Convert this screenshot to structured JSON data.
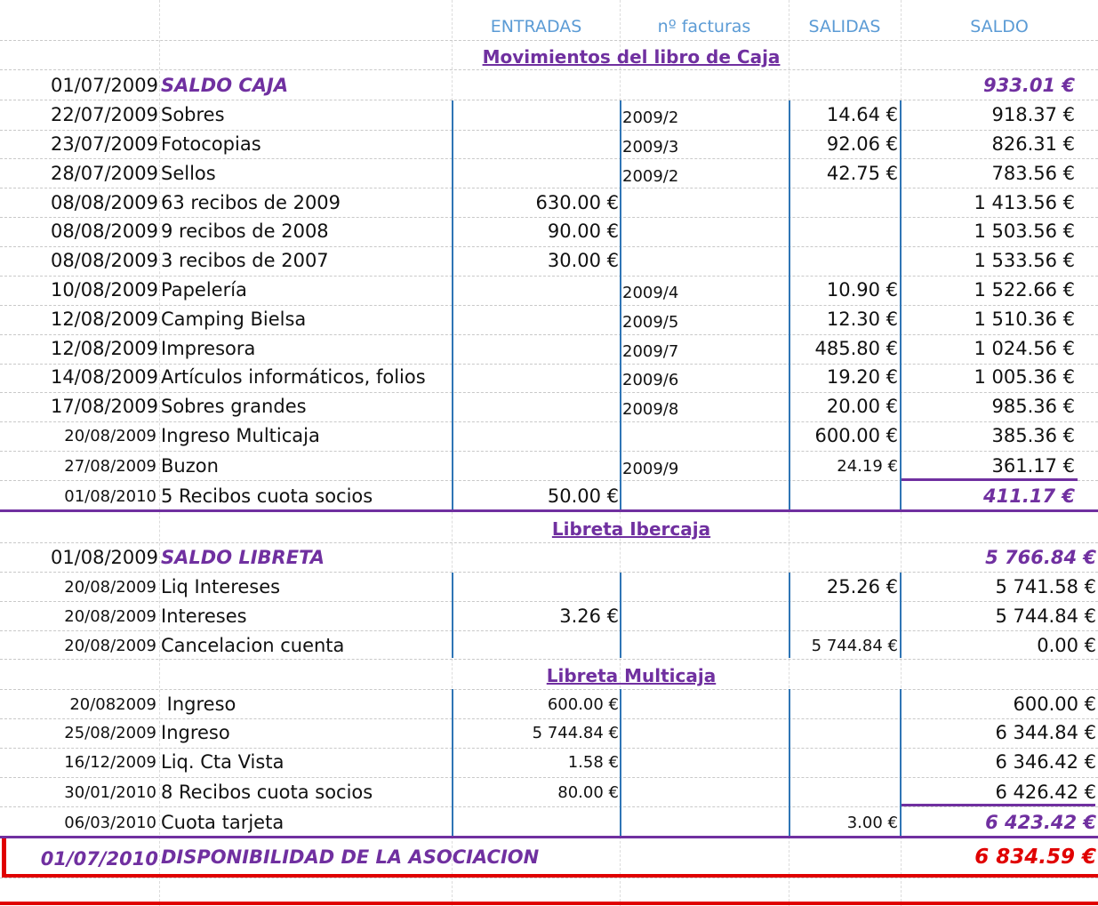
{
  "headers": {
    "entradas": "ENTRADAS",
    "facturas": "nº facturas",
    "salidas": "SALIDAS",
    "saldo": "SALDO"
  },
  "caja": {
    "title": "Movimientos del libro de Caja",
    "opening": {
      "date": "01/07/2009",
      "label": "SALDO CAJA",
      "saldo": "933.01 €"
    },
    "rows": [
      {
        "date": "22/07/2009",
        "desc": "Sobres",
        "entradas": "",
        "factura": "2009/2",
        "salidas": "14.64 €",
        "saldo": "918.37 €"
      },
      {
        "date": "23/07/2009",
        "desc": "Fotocopias",
        "entradas": "",
        "factura": "2009/3",
        "salidas": "92.06 €",
        "saldo": "826.31 €"
      },
      {
        "date": "28/07/2009",
        "desc": "Sellos",
        "entradas": "",
        "factura": "2009/2",
        "salidas": "42.75 €",
        "saldo": "783.56 €"
      },
      {
        "date": "08/08/2009",
        "desc": "63 recibos de 2009",
        "entradas": "630.00 €",
        "factura": "",
        "salidas": "",
        "saldo": "1 413.56 €"
      },
      {
        "date": "08/08/2009",
        "desc": "9 recibos de 2008",
        "entradas": "90.00 €",
        "factura": "",
        "salidas": "",
        "saldo": "1 503.56 €"
      },
      {
        "date": "08/08/2009",
        "desc": "3 recibos de 2007",
        "entradas": "30.00 €",
        "factura": "",
        "salidas": "",
        "saldo": "1 533.56 €"
      },
      {
        "date": "10/08/2009",
        "desc": "Papelería",
        "entradas": "",
        "factura": "2009/4",
        "salidas": "10.90 €",
        "saldo": "1 522.66 €"
      },
      {
        "date": "12/08/2009",
        "desc": "Camping Bielsa",
        "entradas": "",
        "factura": "2009/5",
        "salidas": "12.30 €",
        "saldo": "1 510.36 €"
      },
      {
        "date": "12/08/2009",
        "desc": "Impresora",
        "entradas": "",
        "factura": "2009/7",
        "salidas": "485.80 €",
        "saldo": "1 024.56 €"
      },
      {
        "date": "14/08/2009",
        "desc": "Artículos informáticos, folios",
        "entradas": "",
        "factura": "2009/6",
        "salidas": "19.20 €",
        "saldo": "1 005.36 €"
      },
      {
        "date": "17/08/2009",
        "desc": "Sobres grandes",
        "entradas": "",
        "factura": "2009/8",
        "salidas": "20.00 €",
        "saldo": "985.36 €"
      },
      {
        "date": "20/08/2009",
        "desc": "Ingreso Multicaja",
        "entradas": "",
        "factura": "",
        "salidas": "600.00 €",
        "saldo": "385.36 €"
      },
      {
        "date": "27/08/2009",
        "desc": "Buzon",
        "entradas": "",
        "factura": "2009/9",
        "salidas": "24.19 €",
        "saldo": "361.17 €"
      },
      {
        "date": "01/08/2010",
        "desc": "5 Recibos cuota socios",
        "entradas": "50.00 €",
        "factura": "",
        "salidas": "",
        "saldo": "411.17 €"
      }
    ]
  },
  "ibercaja": {
    "title": "Libreta Ibercaja",
    "opening": {
      "date": "01/08/2009",
      "label": "SALDO LIBRETA",
      "saldo": "5 766.84 €"
    },
    "rows": [
      {
        "date": "20/08/2009",
        "desc": "Liq Intereses",
        "entradas": "",
        "salidas": "25.26 €",
        "saldo": "5 741.58 €"
      },
      {
        "date": "20/08/2009",
        "desc": "Intereses",
        "entradas": "3.26 €",
        "salidas": "",
        "saldo": "5 744.84 €"
      },
      {
        "date": "20/08/2009",
        "desc": "Cancelacion cuenta",
        "entradas": "",
        "salidas": "5 744.84 €",
        "saldo": "0.00 €"
      }
    ]
  },
  "multicaja": {
    "title": "Libreta Multicaja",
    "rows": [
      {
        "date": "20/082009",
        "desc": " Ingreso",
        "entradas": "600.00 €",
        "salidas": "",
        "saldo": "600.00 €"
      },
      {
        "date": "25/08/2009",
        "desc": "Ingreso",
        "entradas": "5 744.84 €",
        "salidas": "",
        "saldo": "6 344.84 €"
      },
      {
        "date": "16/12/2009",
        "desc": "Liq. Cta Vista",
        "entradas": "1.58 €",
        "salidas": "",
        "saldo": "6 346.42 €"
      },
      {
        "date": "30/01/2010",
        "desc": "8 Recibos cuota socios",
        "entradas": "80.00 €",
        "salidas": "",
        "saldo": "6 426.42 €"
      },
      {
        "date": "06/03/2010",
        "desc": "Cuota tarjeta",
        "entradas": "",
        "salidas": "3.00 €",
        "saldo": "6 423.42 €"
      }
    ]
  },
  "total": {
    "date": "01/07/2010",
    "label": "DISPONIBILIDAD DE LA ASOCIACION",
    "amount": "6 834.59 €"
  },
  "colors": {
    "header_blue": "#5b9bd5",
    "column_border_blue": "#2f75b5",
    "purple": "#7030a0",
    "red": "#e00000"
  }
}
